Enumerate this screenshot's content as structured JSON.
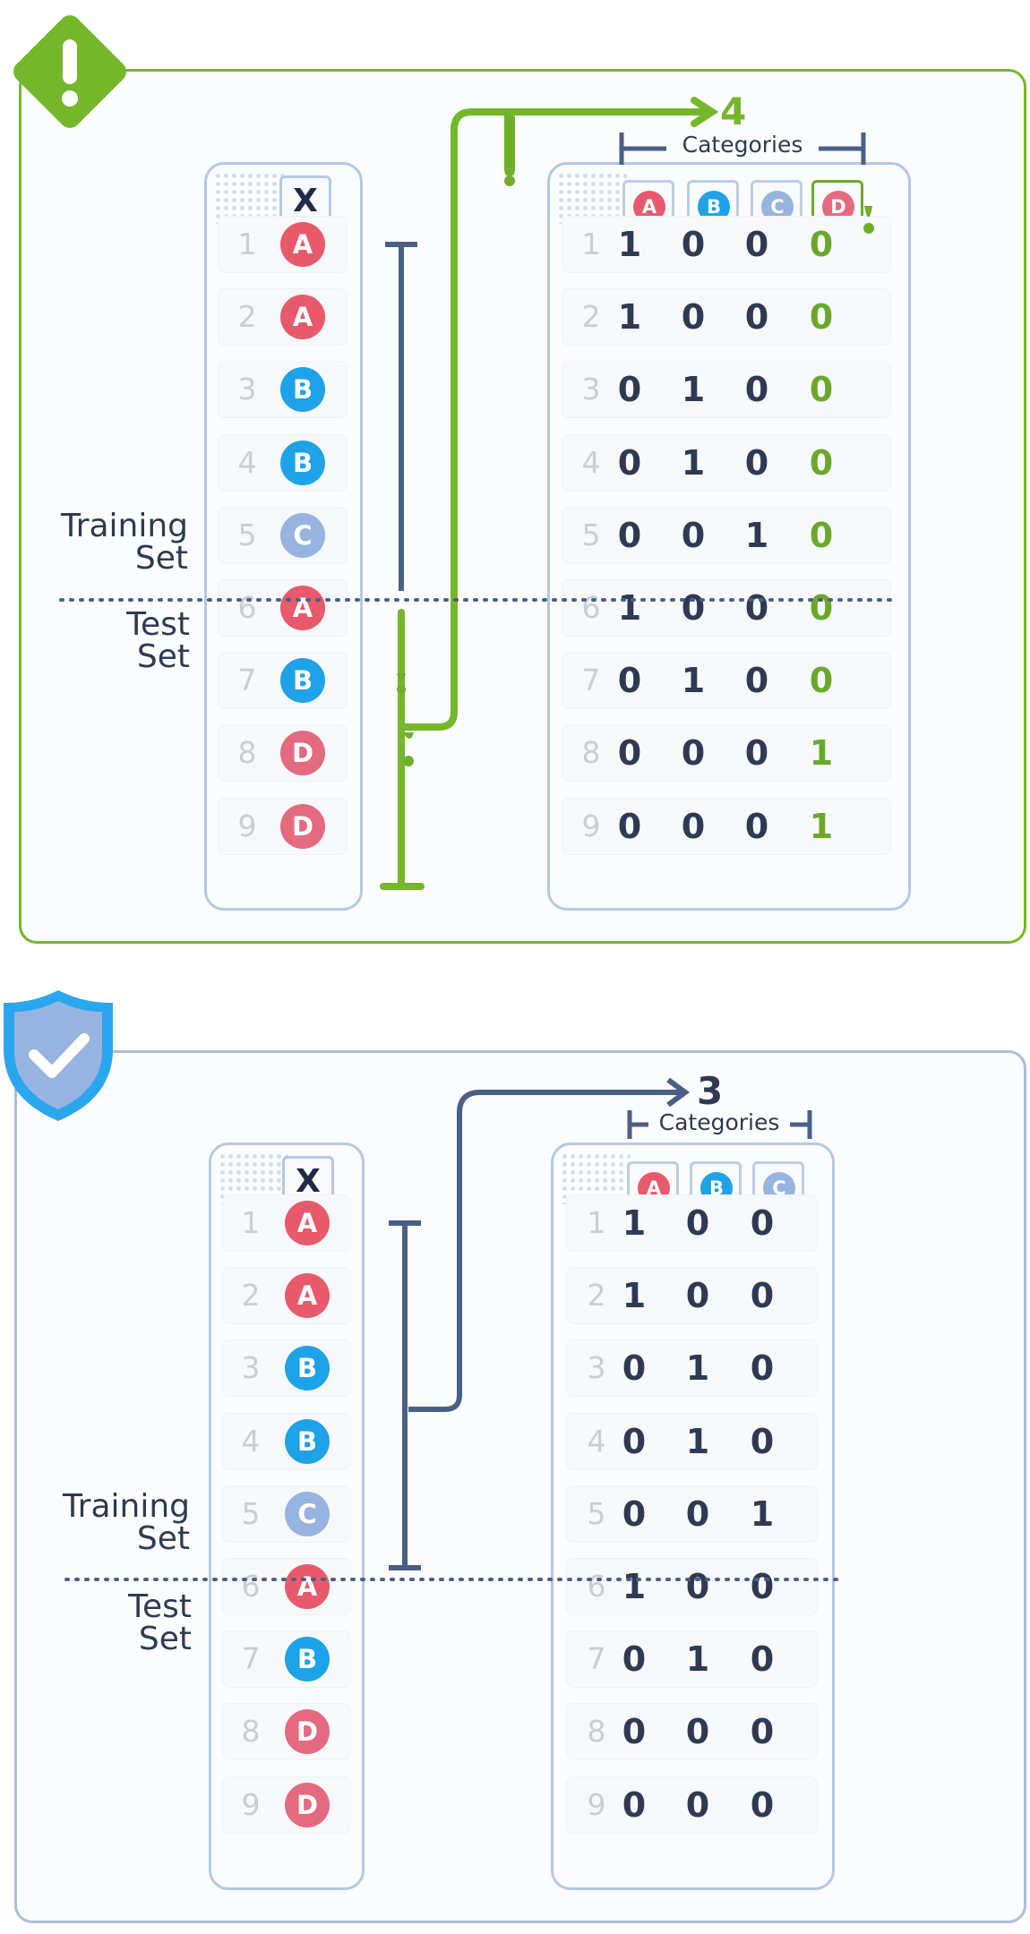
{
  "labels": {
    "training": [
      "Training",
      "Set"
    ],
    "test": [
      "Test",
      "Set"
    ],
    "categories": "Categories",
    "x_header": "X"
  },
  "colors": {
    "A": "#e85a6b",
    "B": "#1ea2e8",
    "C": "#97b3e0",
    "D": "#e46a80",
    "green": "#75b72a",
    "navy": "#4a5f85",
    "blue": "#2aa6ef"
  },
  "row_numbers": [
    "1",
    "2",
    "3",
    "4",
    "5",
    "6",
    "7",
    "8",
    "9"
  ],
  "rows_x": [
    "A",
    "A",
    "B",
    "B",
    "C",
    "A",
    "B",
    "D",
    "D"
  ],
  "top": {
    "count": "4",
    "categories": [
      "A",
      "B",
      "C",
      "D"
    ],
    "encoding": [
      [
        "1",
        "0",
        "0",
        "0"
      ],
      [
        "1",
        "0",
        "0",
        "0"
      ],
      [
        "0",
        "1",
        "0",
        "0"
      ],
      [
        "0",
        "1",
        "0",
        "0"
      ],
      [
        "0",
        "0",
        "1",
        "0"
      ],
      [
        "1",
        "0",
        "0",
        "0"
      ],
      [
        "0",
        "1",
        "0",
        "0"
      ],
      [
        "0",
        "0",
        "0",
        "1"
      ],
      [
        "0",
        "0",
        "0",
        "1"
      ]
    ]
  },
  "bottom": {
    "count": "3",
    "categories": [
      "A",
      "B",
      "C"
    ],
    "encoding": [
      [
        "1",
        "0",
        "0"
      ],
      [
        "1",
        "0",
        "0"
      ],
      [
        "0",
        "1",
        "0"
      ],
      [
        "0",
        "1",
        "0"
      ],
      [
        "0",
        "0",
        "1"
      ],
      [
        "1",
        "0",
        "0"
      ],
      [
        "0",
        "1",
        "0"
      ],
      [
        "0",
        "0",
        "0"
      ],
      [
        "0",
        "0",
        "0"
      ]
    ]
  },
  "icons": {
    "top": "warning-exclamation-icon",
    "bottom": "shield-check-icon"
  }
}
